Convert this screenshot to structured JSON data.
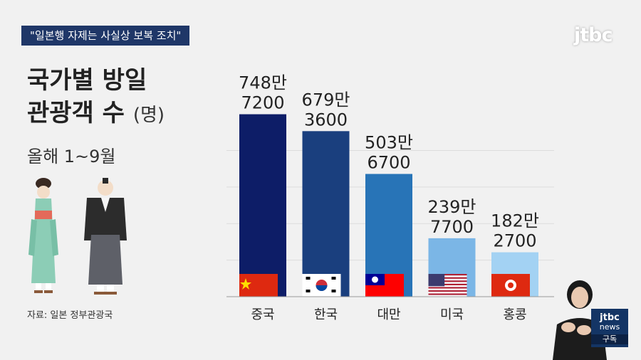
{
  "banner": "\"일본행 자제는 사실상 보복 조치\"",
  "logo": "jtbc",
  "title_line1": "국가별 방일",
  "title_line2": "관광객 수",
  "title_unit": "(명)",
  "subtitle": "올해 1~9월",
  "source": "자료: 일본 정부관광국",
  "badge": {
    "brand": "jtbc",
    "line2": "news",
    "subscribe": "구독"
  },
  "colors": {
    "china": "#0d1d67",
    "korea": "#1a3f7e",
    "taiwan": "#2874b7",
    "usa": "#7bb6e6",
    "hongkong": "#a3d2f3"
  },
  "chart_data": {
    "type": "bar",
    "categories": [
      "중국",
      "한국",
      "대만",
      "미국",
      "홍콩"
    ],
    "values": [
      7487200,
      6793600,
      5036700,
      2397700,
      1822700
    ],
    "labels": [
      [
        "748만",
        "7200"
      ],
      [
        "679만",
        "3600"
      ],
      [
        "503만",
        "6700"
      ],
      [
        "239만",
        "7700"
      ],
      [
        "182만",
        "2700"
      ]
    ],
    "flags": [
      "china-flag",
      "korea-flag",
      "taiwan-flag",
      "usa-flag",
      "hongkong-flag"
    ],
    "bar_colors": [
      "#0d1d67",
      "#1a3f7e",
      "#2874b7",
      "#7bb6e6",
      "#a3d2f3"
    ],
    "ylim": [
      0,
      8000000
    ],
    "grid": true
  }
}
